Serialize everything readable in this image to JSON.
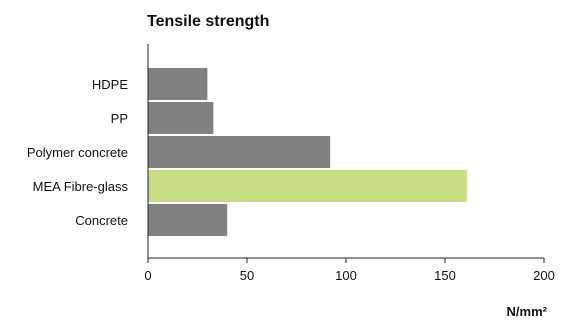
{
  "chart_data": {
    "type": "bar",
    "orientation": "horizontal",
    "title": "Tensile strength",
    "categories": [
      "HDPE",
      "PP",
      "Polymer concrete",
      "MEA Fibre-glass",
      "Concrete"
    ],
    "values": [
      30,
      33,
      92,
      161,
      40
    ],
    "xlabel": "N/mm²",
    "ylabel": "",
    "xlim": [
      0,
      200
    ],
    "xticks": [
      0,
      50,
      100,
      150,
      200
    ],
    "xtick_labels": [
      "0",
      "50",
      "100",
      "150",
      "200"
    ],
    "grid": false,
    "colors": {
      "default": "#808080",
      "highlight": "#c8dc86"
    },
    "highlight_category": "MEA Fibre-glass"
  }
}
